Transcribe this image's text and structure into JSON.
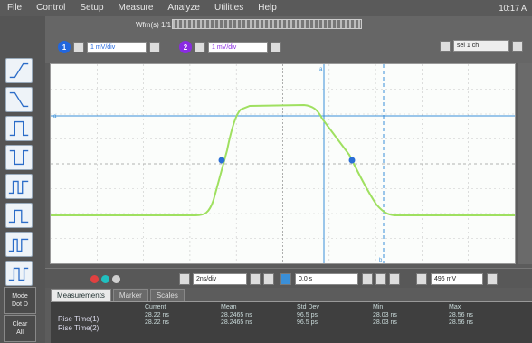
{
  "menu": {
    "items": [
      "File",
      "Control",
      "Setup",
      "Measure",
      "Analyze",
      "Utilities",
      "Help"
    ],
    "clock": "10:17 A"
  },
  "top": {
    "tab_label": "Wfm(s) 1/1",
    "ch1": {
      "num": "1",
      "value": "1 mV/div",
      "color": "#2266dd"
    },
    "ch2": {
      "num": "2",
      "value": "1 mV/div",
      "color": "#8a2be2"
    },
    "right_value": "sel 1 ch"
  },
  "left_buttons": [
    "rise-edge",
    "fall-edge",
    "pos-width",
    "neg-width",
    "pulse-1",
    "pulse-2",
    "pulse-3",
    "pulse-4"
  ],
  "side_buttons": [
    {
      "label": "Mode\nDot D"
    },
    {
      "label": "Clear\nAll"
    }
  ],
  "timebar": {
    "timescale": "2ns/div",
    "position": "0.0 s",
    "ampl": "496 mV"
  },
  "tabs": [
    "Measurements",
    "Marker",
    "Scales"
  ],
  "meas": {
    "rows": [
      "Rise Time(1)",
      "Rise Time(2)"
    ],
    "columns": [
      {
        "header": "Current",
        "values": [
          "28.22 ns",
          "28.22 ns"
        ]
      },
      {
        "header": "Mean",
        "values": [
          "28.2465 ns",
          "28.2465 ns"
        ]
      },
      {
        "header": "Std Dev",
        "values": [
          "96.5 ps",
          "96.5 ps"
        ]
      },
      {
        "header": "Min",
        "values": [
          "28.03 ns",
          "28.03 ns"
        ]
      },
      {
        "header": "Max",
        "values": [
          "28.56 ns",
          "28.56 ns"
        ]
      }
    ]
  },
  "colors": {
    "trace": "#9fe060",
    "grid": "#b8b8b8",
    "marker": "#3a8fd8",
    "dot1": "#e04040",
    "dot2": "#20c0c0"
  }
}
